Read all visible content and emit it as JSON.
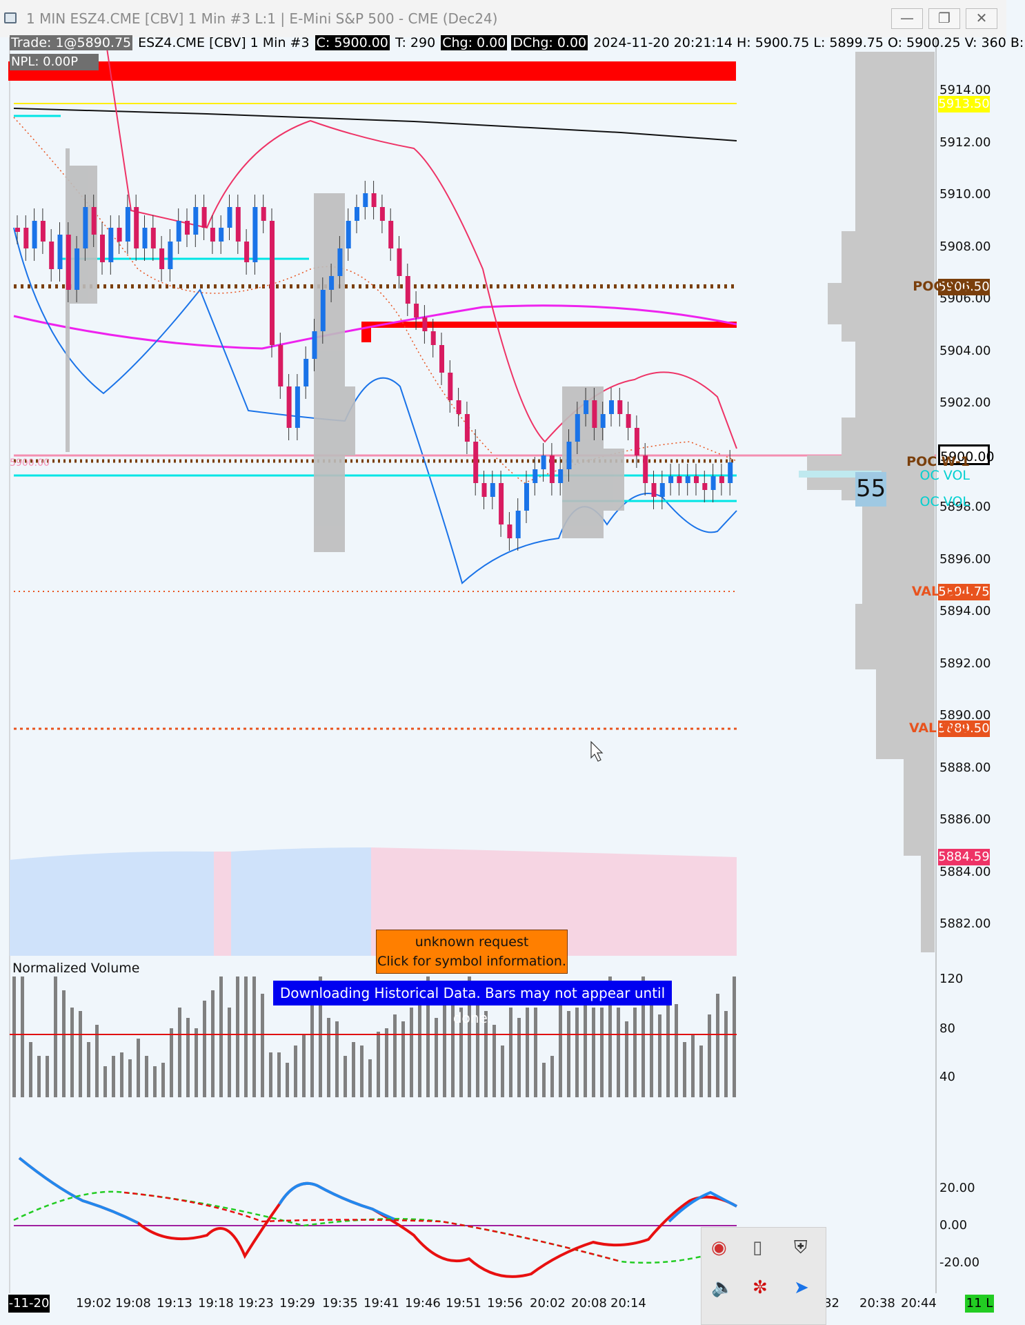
{
  "window": {
    "title": "1 MIN ESZ4.CME [CBV]  1 Min  #3 L:1 | E-Mini S&P 500 - CME (Dec24)",
    "minimize": "—",
    "restore": "❐",
    "close": "✕"
  },
  "info_bar": {
    "trade": "Trade: 1@5890.75",
    "symbol": "ESZ4.CME [CBV]  1 Min  #3",
    "close": "C: 5900.00",
    "trades": "T: 290",
    "chg": "Chg: 0.00",
    "dchg": "DChg: 0.00",
    "rest": "2024-11-20 20:21:14  H: 5900.75  L: 5899.75  O: 5900.25  V: 360  B:"
  },
  "npl": "NPL: 0.00P",
  "price_axis": {
    "ticks": [
      "5914.00",
      "5912.00",
      "5910.00",
      "5908.00",
      "5906.00",
      "5904.00",
      "5902.00",
      "5900.00",
      "5898.00",
      "5896.00",
      "5894.00",
      "5892.00",
      "5890.00",
      "5888.00",
      "5886.00",
      "5884.00",
      "5882.00"
    ],
    "current": "5900.00"
  },
  "price_tags": [
    {
      "value": "5913.50",
      "bg": "#ffff00",
      "fg": "#ffffff"
    },
    {
      "value": "5906.50",
      "bg": "#7a3f0c",
      "fg": "#ffffff"
    },
    {
      "value": "5894.75",
      "bg": "#e8531e",
      "fg": "#ffffff"
    },
    {
      "value": "5889.50",
      "bg": "#e8531e",
      "fg": "#ffffff"
    },
    {
      "value": "5884.59",
      "bg": "#ee3366",
      "fg": "#ffffff"
    }
  ],
  "level_labels": {
    "poc_y1": "POC Y-1",
    "poc_w1": "POC W-1",
    "poc_vol_1": "OC VOL",
    "poc_vol_2": "OC VOL",
    "val_d1": "VAL D-1",
    "val_w1": "VAL W-1",
    "counter": "55",
    "left_level": "5900.00"
  },
  "alert": {
    "line1": "unknown request",
    "line2": "Click for symbol information."
  },
  "download_msg": "Downloading Historical Data. Bars may not appear until done.",
  "normalized_volume": {
    "title": "Normalized Volume",
    "ticks": [
      "120",
      "80",
      "40"
    ]
  },
  "oscillator": {
    "ticks": [
      "20.00",
      "0.00",
      "-20.00"
    ]
  },
  "time_axis": {
    "date": "-11-20",
    "labels": [
      "19:02",
      "19:08",
      "19:13",
      "19:18",
      "19:23",
      "19:29",
      "19:35",
      "19:41",
      "19:46",
      "19:51",
      "19:56",
      "20:02",
      "20:08",
      "20:14",
      ":32",
      "20:38",
      "20:44"
    ],
    "count": "11 L"
  },
  "colors": {
    "up": "#1a73e8",
    "down": "#d81b60",
    "background": "#f0f6fb"
  }
}
